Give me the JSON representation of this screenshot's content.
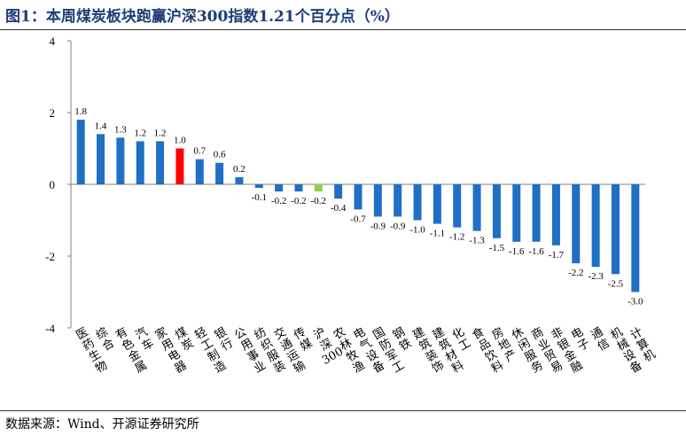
{
  "header": {
    "title": "图1：本周煤炭板块跑赢沪深300指数1.21个百分点（%）"
  },
  "footer": {
    "source": "数据来源：Wind、开源证券研究所"
  },
  "colors": {
    "default_bar": "#1f6fc5",
    "highlight_coal": "#ff0000",
    "highlight_index": "#92d050"
  },
  "chart_data": {
    "type": "bar",
    "title": "本周煤炭板块跑赢沪深300指数1.21个百分点（%）",
    "categories": [
      "医药生物",
      "综合",
      "有色金属",
      "汽车",
      "家用电器",
      "煤炭",
      "轻工制造",
      "银行",
      "公用事业",
      "纺织服装",
      "交通运输",
      "传媒",
      "沪深300",
      "农林牧渔",
      "电气设备",
      "国防军工",
      "钢铁",
      "建筑装饰",
      "建筑材料",
      "化工",
      "食品饮料",
      "房地产",
      "休闲服务",
      "商业贸易",
      "非银金融",
      "电子",
      "通信",
      "机械设备",
      "计算机"
    ],
    "values": [
      1.8,
      1.4,
      1.3,
      1.2,
      1.2,
      1.0,
      0.7,
      0.6,
      0.2,
      -0.1,
      -0.2,
      -0.2,
      -0.2,
      -0.4,
      -0.7,
      -0.9,
      -0.9,
      -1.0,
      -1.1,
      -1.2,
      -1.3,
      -1.5,
      -1.6,
      -1.6,
      -1.7,
      -2.2,
      -2.3,
      -2.5,
      -3.0
    ],
    "value_labels": [
      "1.8",
      "1.4",
      "1.3",
      "1.2",
      "1.2",
      "1.0",
      "0.7",
      "0.6",
      "0.2",
      "-0.1",
      "-0.2",
      "-0.2",
      "-0.2",
      "-0.4",
      "-0.7",
      "-0.9",
      "-0.9",
      "-1.0",
      "-1.1",
      "-1.2",
      "-1.3",
      "-1.5",
      "-1.6",
      "-1.6",
      "-1.7",
      "-2.2",
      "-2.3",
      "-2.5",
      "-3.0"
    ],
    "highlight": {
      "煤炭": "#ff0000",
      "沪深300": "#92d050"
    },
    "yticks": [
      "4",
      "2",
      "0",
      "-2",
      "-4"
    ],
    "ylim": [
      -4,
      4
    ],
    "grid": false,
    "legend": "none"
  }
}
